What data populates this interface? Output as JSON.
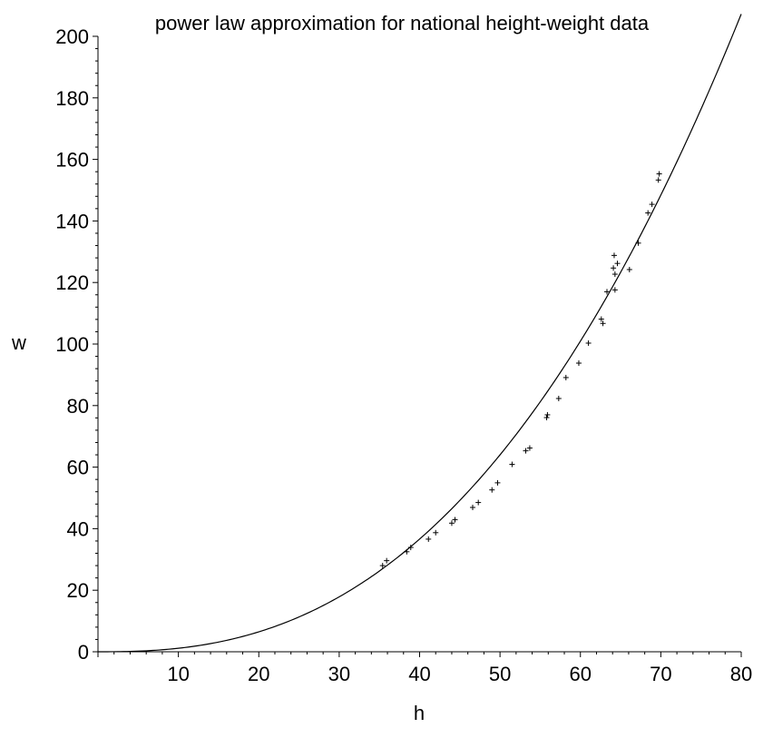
{
  "chart_data": {
    "type": "scatter",
    "title": "power law approximation for national height-weight data",
    "xlabel": "h",
    "ylabel": "w",
    "xlim": [
      0,
      80
    ],
    "ylim": [
      0,
      200
    ],
    "xticks": [
      10,
      20,
      30,
      40,
      50,
      60,
      70,
      80
    ],
    "yticks": [
      0,
      20,
      40,
      60,
      80,
      100,
      120,
      140,
      160,
      180,
      200
    ],
    "grid": false,
    "marker": "+",
    "points": [
      [
        35.4,
        28.0
      ],
      [
        35.9,
        29.6
      ],
      [
        38.4,
        32.5
      ],
      [
        38.9,
        33.9
      ],
      [
        41.1,
        36.6
      ],
      [
        42.0,
        38.7
      ],
      [
        44.0,
        41.8
      ],
      [
        44.4,
        42.9
      ],
      [
        46.6,
        46.9
      ],
      [
        47.3,
        48.5
      ],
      [
        49.0,
        52.6
      ],
      [
        49.7,
        54.9
      ],
      [
        51.5,
        60.9
      ],
      [
        53.2,
        65.3
      ],
      [
        53.7,
        66.2
      ],
      [
        55.8,
        76.1
      ],
      [
        55.9,
        77.0
      ],
      [
        57.3,
        82.3
      ],
      [
        58.2,
        89.1
      ],
      [
        59.8,
        93.8
      ],
      [
        61.0,
        100.3
      ],
      [
        62.6,
        108.1
      ],
      [
        62.8,
        106.7
      ],
      [
        63.3,
        117.0
      ],
      [
        64.1,
        124.7
      ],
      [
        64.2,
        128.8
      ],
      [
        64.3,
        122.7
      ],
      [
        64.3,
        117.6
      ],
      [
        64.6,
        126.2
      ],
      [
        66.1,
        124.2
      ],
      [
        67.2,
        132.8
      ],
      [
        68.4,
        142.6
      ],
      [
        68.9,
        145.4
      ],
      [
        69.7,
        153.3
      ],
      [
        69.8,
        155.3
      ]
    ],
    "fit": {
      "form": "power",
      "coefficient": 0.00362,
      "exponent": 2.5,
      "x_range": [
        0,
        80
      ]
    }
  }
}
